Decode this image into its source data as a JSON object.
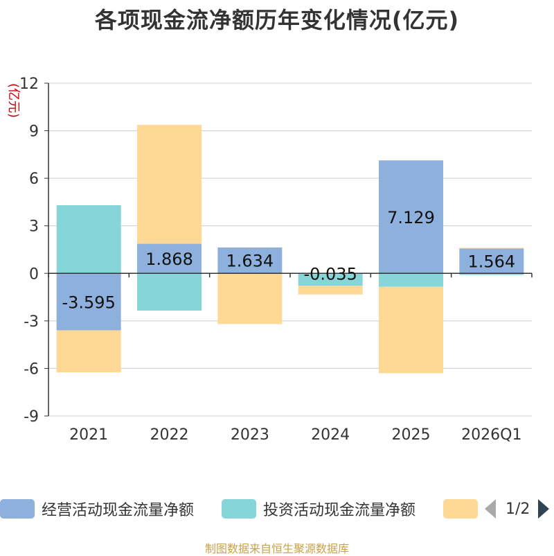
{
  "title": "各项现金流净额历年变化情况(亿元)",
  "source": "制图数据来自恒生聚源数据库",
  "pager": {
    "text": "1/2"
  },
  "chart_data": {
    "type": "bar",
    "stacked": true,
    "categories": [
      "2021",
      "2022",
      "2023",
      "2024",
      "2025",
      "2026Q1"
    ],
    "ylabel": "(亿元)",
    "ylim": [
      -9,
      12
    ],
    "yticks": [
      -9,
      -6,
      -3,
      0,
      3,
      6,
      9,
      12
    ],
    "grid": true,
    "series": [
      {
        "name": "经营活动现金流量净额",
        "color": "#8eb0dc",
        "values": [
          -3.595,
          1.868,
          1.634,
          -0.035,
          7.129,
          1.564
        ],
        "labels": [
          "-3.595",
          "1.868",
          "1.634",
          "-0.035",
          "7.129",
          "1.564"
        ]
      },
      {
        "name": "投资活动现金流量净额",
        "color": "#86d5d9",
        "values": [
          4.3,
          -2.35,
          0.0,
          -0.75,
          -0.85,
          -0.1
        ]
      },
      {
        "name": "",
        "color": "#fed996",
        "values": [
          -2.65,
          7.5,
          -3.2,
          -0.55,
          -5.45,
          0.05
        ]
      }
    ]
  }
}
